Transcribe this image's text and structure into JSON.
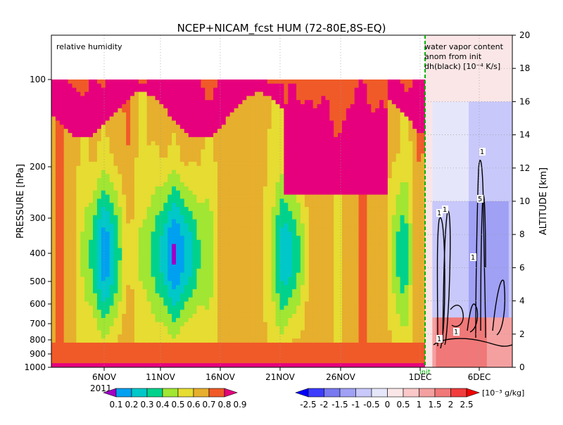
{
  "chart_data": {
    "type": "heatmap",
    "title": "NCEP+NICAM_fcst HUM (72-80E,8S-EQ)",
    "left_panel_label": "relative humidity",
    "right_panel_label_lines": [
      "water vapor content",
      "anom from init",
      "dh(black) [10⁻⁴ K/s]"
    ],
    "init_marker_label": "init",
    "ylabel_left": "PRESSURE [hPa]",
    "ylabel_right": "ALTITUDE [km]",
    "year_label": "2011",
    "pressure_ticks": [
      "100",
      "200",
      "300",
      "400",
      "500",
      "600",
      "700",
      "800",
      "900",
      "1000"
    ],
    "altitude_ticks": [
      "0",
      "2",
      "4",
      "6",
      "8",
      "10",
      "12",
      "14",
      "16",
      "18",
      "20"
    ],
    "altitude_range_km": [
      0,
      20
    ],
    "x_ticks": [
      "6NOV",
      "11NOV",
      "16NOV",
      "21NOV",
      "26NOV",
      "1DEC",
      "6DEC"
    ],
    "humidity_levels": [
      "0.1",
      "0.2",
      "0.3",
      "0.4",
      "0.5",
      "0.6",
      "0.7",
      "0.8",
      "0.9"
    ],
    "humidity_colors": [
      "#a000c8",
      "#00a0f0",
      "#00c8c8",
      "#00d28c",
      "#a0e632",
      "#e6dc32",
      "#e6af2d",
      "#f05a28",
      "#e6007d"
    ],
    "anomaly_levels": [
      "-2.5",
      "-2",
      "-1.5",
      "-1",
      "-0.5",
      "0",
      "0.5",
      "1",
      "1.5",
      "2",
      "2.5"
    ],
    "anomaly_colors": [
      "#0000ff",
      "#3c3cff",
      "#7878f0",
      "#a0a0f5",
      "#c8c8fa",
      "#e6e6fa",
      "#fae6e6",
      "#fac8c8",
      "#f5a0a0",
      "#f07878",
      "#f03c3c",
      "#f00000"
    ],
    "anomaly_unit": "[10⁻³ g/kg]",
    "contour_labels": [
      "1",
      "1",
      "1",
      "5",
      "1",
      "1",
      "1"
    ]
  }
}
